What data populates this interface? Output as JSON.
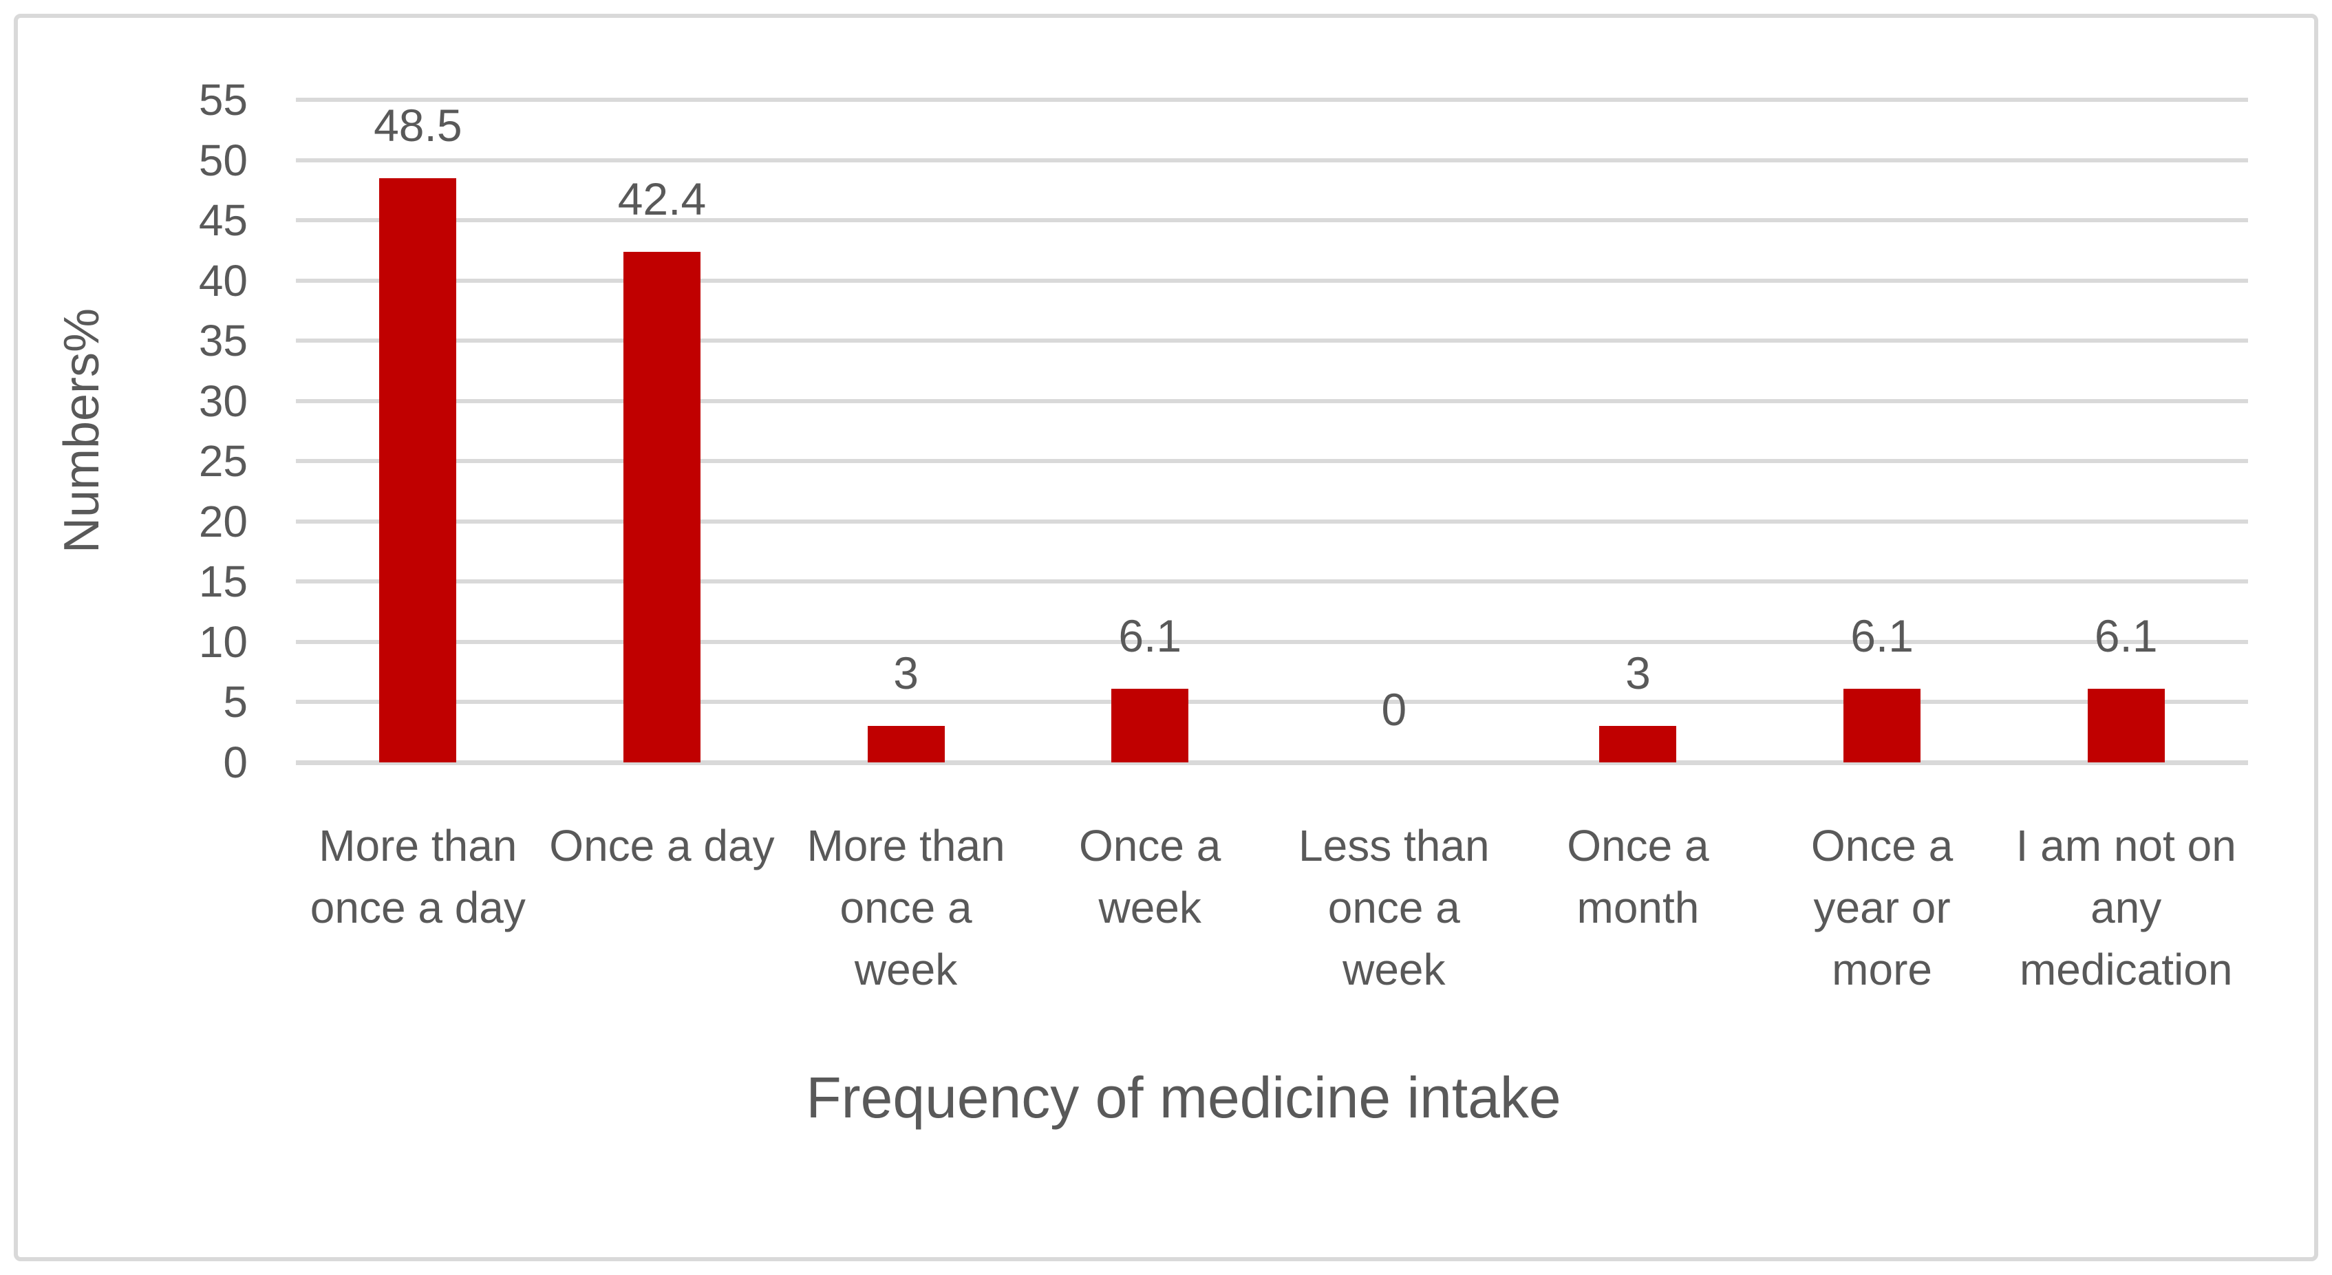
{
  "chart_data": {
    "type": "bar",
    "title": "",
    "xlabel": "Frequency of medicine intake",
    "ylabel": "Numbers%",
    "categories": [
      "More than once a day",
      "Once a day",
      "More than once a week",
      "Once a week",
      "Less than once a week",
      "Once a month",
      "Once a year or more",
      "I am not on any medication"
    ],
    "category_lines": [
      [
        "More than",
        "once a day"
      ],
      [
        "Once a day"
      ],
      [
        "More than",
        "once a",
        "week"
      ],
      [
        "Once a",
        "week"
      ],
      [
        "Less than",
        "once a",
        "week"
      ],
      [
        "Once a",
        "month"
      ],
      [
        "Once a",
        "year or",
        "more"
      ],
      [
        "I am not on",
        "any",
        "medication"
      ]
    ],
    "values": [
      48.5,
      42.4,
      3,
      6.1,
      0,
      3,
      6.1,
      6.1
    ],
    "value_labels": [
      "48.5",
      "42.4",
      "3",
      "6.1",
      "0",
      "3",
      "6.1",
      "6.1"
    ],
    "ylim": [
      0,
      55
    ],
    "yticks": [
      0,
      5,
      10,
      15,
      20,
      25,
      30,
      35,
      40,
      45,
      50,
      55
    ],
    "ytick_labels": [
      "0",
      "5",
      "10",
      "15",
      "20",
      "25",
      "30",
      "35",
      "40",
      "45",
      "50",
      "55"
    ],
    "grid": true,
    "legend": false,
    "single_series": true,
    "colors": {
      "bar": "#c00000",
      "text": "#595959",
      "gridline": "#d9d9d9",
      "border": "#d9d9d9",
      "background": "#ffffff"
    }
  }
}
